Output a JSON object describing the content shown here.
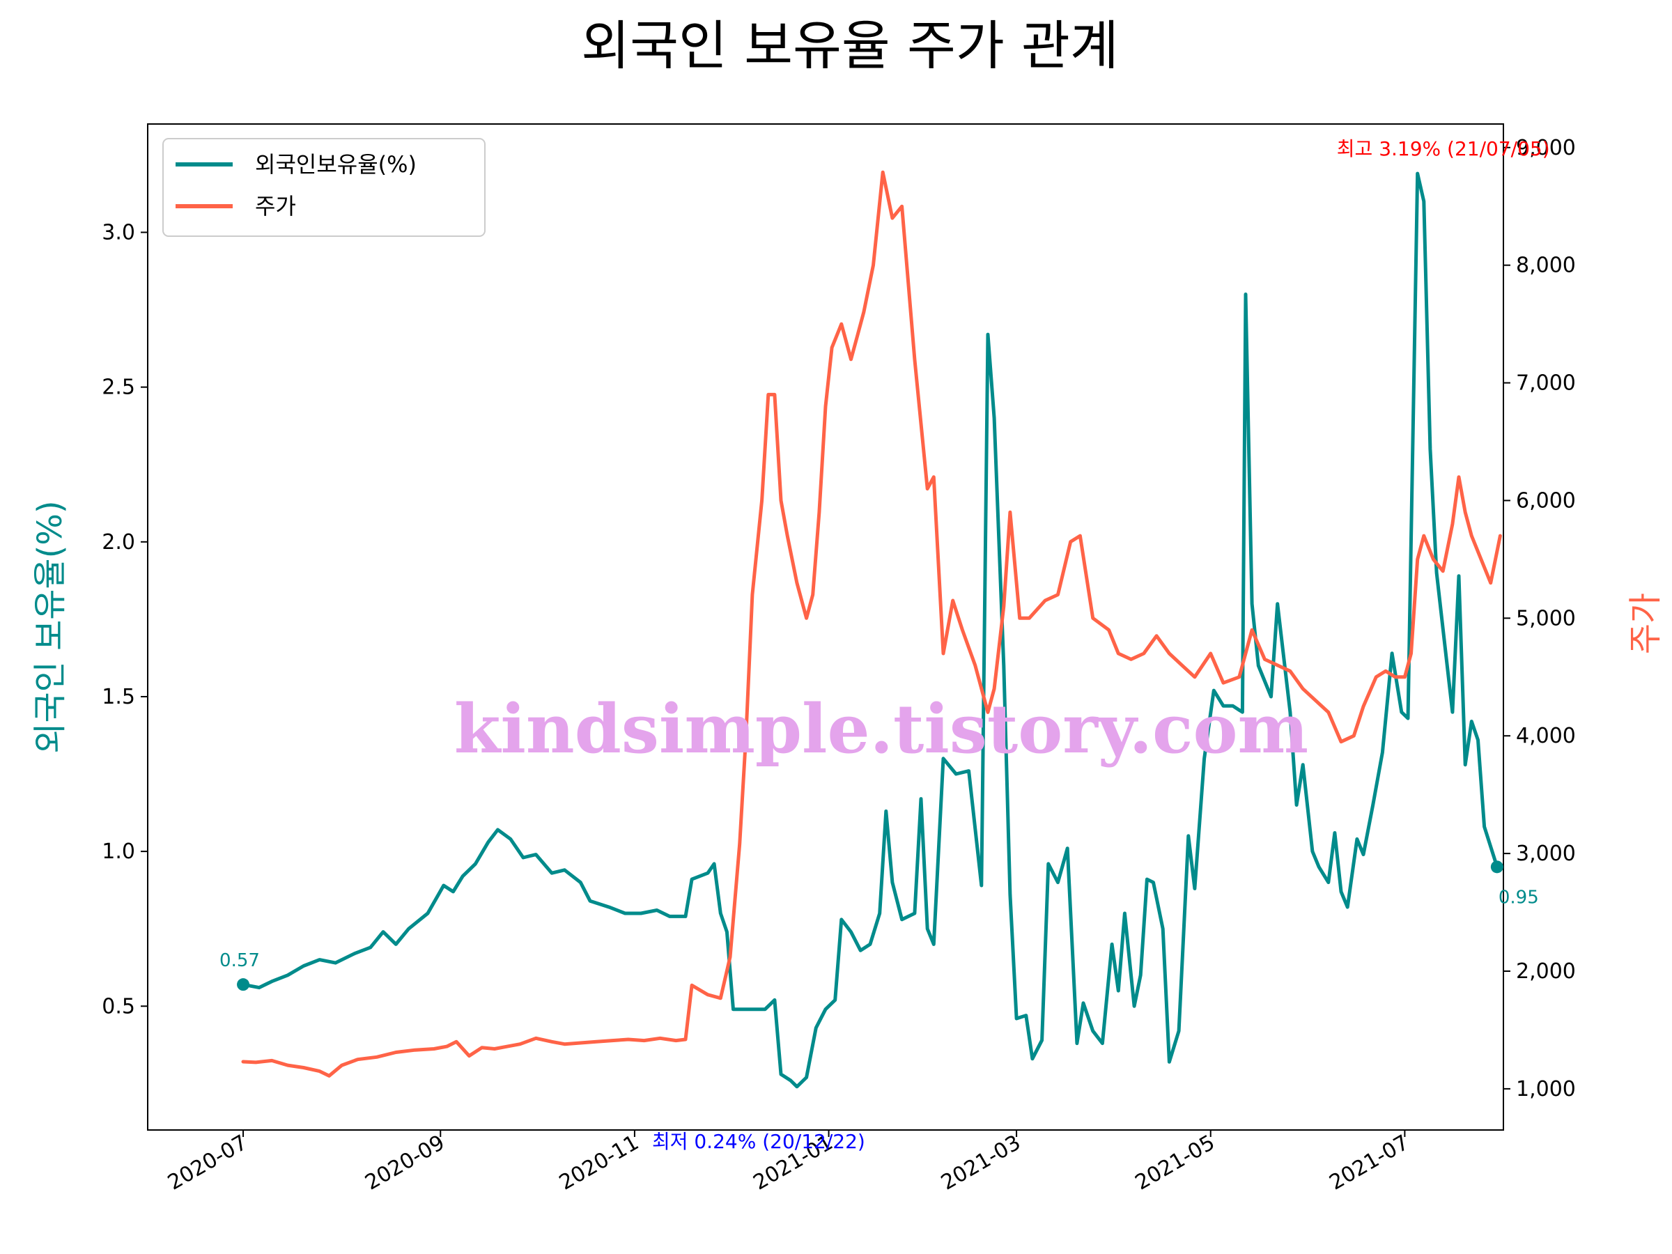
{
  "chart_data": {
    "type": "line",
    "title": "외국인 보유율 주가 관계",
    "ylabel_left": "외국인 보유율(%)",
    "ylabel_right": "주가",
    "colors": {
      "holding": "#008b8b",
      "price": "#ff6347",
      "max_annotation": "#ff0000",
      "min_annotation": "#0000ff",
      "watermark": "#e4a4ec"
    },
    "xlim": [
      "2020-06-01",
      "2021-08-01"
    ],
    "ylim_left": [
      0.1,
      3.35
    ],
    "ylim_right": [
      650,
      9200
    ],
    "x_ticks": [
      "2020-07",
      "2020-09",
      "2020-11",
      "2021-01",
      "2021-03",
      "2021-05",
      "2021-07"
    ],
    "y_left_ticks": [
      "0.5",
      "1.0",
      "1.5",
      "2.0",
      "2.5",
      "3.0"
    ],
    "y_right_ticks": [
      "1,000",
      "2,000",
      "3,000",
      "4,000",
      "5,000",
      "6,000",
      "7,000",
      "8,000",
      "9,000"
    ],
    "legend": {
      "position": "upper-left",
      "entries": [
        "외국인보유율(%)",
        "주가"
      ]
    },
    "grid": false,
    "series": [
      {
        "name": "외국인보유율(%)",
        "axis": "left",
        "points": [
          [
            "2020-07-01",
            0.57
          ],
          [
            "2020-07-06",
            0.56
          ],
          [
            "2020-07-10",
            0.58
          ],
          [
            "2020-07-15",
            0.6
          ],
          [
            "2020-07-20",
            0.63
          ],
          [
            "2020-07-25",
            0.65
          ],
          [
            "2020-07-30",
            0.64
          ],
          [
            "2020-08-05",
            0.67
          ],
          [
            "2020-08-10",
            0.69
          ],
          [
            "2020-08-14",
            0.74
          ],
          [
            "2020-08-18",
            0.7
          ],
          [
            "2020-08-22",
            0.75
          ],
          [
            "2020-08-28",
            0.8
          ],
          [
            "2020-09-02",
            0.89
          ],
          [
            "2020-09-05",
            0.87
          ],
          [
            "2020-09-08",
            0.92
          ],
          [
            "2020-09-12",
            0.96
          ],
          [
            "2020-09-16",
            1.03
          ],
          [
            "2020-09-19",
            1.07
          ],
          [
            "2020-09-23",
            1.04
          ],
          [
            "2020-09-27",
            0.98
          ],
          [
            "2020-10-01",
            0.99
          ],
          [
            "2020-10-06",
            0.93
          ],
          [
            "2020-10-10",
            0.94
          ],
          [
            "2020-10-15",
            0.9
          ],
          [
            "2020-10-18",
            0.84
          ],
          [
            "2020-10-24",
            0.82
          ],
          [
            "2020-10-29",
            0.8
          ],
          [
            "2020-11-03",
            0.8
          ],
          [
            "2020-11-08",
            0.81
          ],
          [
            "2020-11-12",
            0.79
          ],
          [
            "2020-11-17",
            0.79
          ],
          [
            "2020-11-19",
            0.91
          ],
          [
            "2020-11-24",
            0.93
          ],
          [
            "2020-11-26",
            0.96
          ],
          [
            "2020-11-28",
            0.8
          ],
          [
            "2020-11-30",
            0.74
          ],
          [
            "2020-12-02",
            0.49
          ],
          [
            "2020-12-08",
            0.49
          ],
          [
            "2020-12-12",
            0.49
          ],
          [
            "2020-12-15",
            0.52
          ],
          [
            "2020-12-17",
            0.28
          ],
          [
            "2020-12-20",
            0.26
          ],
          [
            "2020-12-22",
            0.24
          ],
          [
            "2020-12-25",
            0.27
          ],
          [
            "2020-12-28",
            0.43
          ],
          [
            "2020-12-31",
            0.49
          ],
          [
            "2021-01-03",
            0.52
          ],
          [
            "2021-01-05",
            0.78
          ],
          [
            "2021-01-08",
            0.74
          ],
          [
            "2021-01-11",
            0.68
          ],
          [
            "2021-01-14",
            0.7
          ],
          [
            "2021-01-17",
            0.8
          ],
          [
            "2021-01-19",
            1.13
          ],
          [
            "2021-01-21",
            0.9
          ],
          [
            "2021-01-24",
            0.78
          ],
          [
            "2021-01-28",
            0.8
          ],
          [
            "2021-01-30",
            1.17
          ],
          [
            "2021-02-01",
            0.75
          ],
          [
            "2021-02-03",
            0.7
          ],
          [
            "2021-02-06",
            1.3
          ],
          [
            "2021-02-10",
            1.25
          ],
          [
            "2021-02-14",
            1.26
          ],
          [
            "2021-02-18",
            0.89
          ],
          [
            "2021-02-20",
            2.67
          ],
          [
            "2021-02-22",
            2.4
          ],
          [
            "2021-02-25",
            1.6
          ],
          [
            "2021-02-27",
            0.86
          ],
          [
            "2021-03-01",
            0.46
          ],
          [
            "2021-03-04",
            0.47
          ],
          [
            "2021-03-06",
            0.33
          ],
          [
            "2021-03-09",
            0.39
          ],
          [
            "2021-03-11",
            0.96
          ],
          [
            "2021-03-14",
            0.9
          ],
          [
            "2021-03-17",
            1.01
          ],
          [
            "2021-03-20",
            0.38
          ],
          [
            "2021-03-22",
            0.51
          ],
          [
            "2021-03-25",
            0.42
          ],
          [
            "2021-03-28",
            0.38
          ],
          [
            "2021-03-31",
            0.7
          ],
          [
            "2021-04-02",
            0.55
          ],
          [
            "2021-04-04",
            0.8
          ],
          [
            "2021-04-07",
            0.5
          ],
          [
            "2021-04-09",
            0.6
          ],
          [
            "2021-04-11",
            0.91
          ],
          [
            "2021-04-13",
            0.9
          ],
          [
            "2021-04-16",
            0.75
          ],
          [
            "2021-04-18",
            0.32
          ],
          [
            "2021-04-21",
            0.42
          ],
          [
            "2021-04-24",
            1.05
          ],
          [
            "2021-04-26",
            0.88
          ],
          [
            "2021-04-29",
            1.3
          ],
          [
            "2021-05-02",
            1.52
          ],
          [
            "2021-05-05",
            1.47
          ],
          [
            "2021-05-08",
            1.47
          ],
          [
            "2021-05-11",
            1.45
          ],
          [
            "2021-05-12",
            2.8
          ],
          [
            "2021-05-14",
            1.8
          ],
          [
            "2021-05-16",
            1.6
          ],
          [
            "2021-05-20",
            1.5
          ],
          [
            "2021-05-22",
            1.8
          ],
          [
            "2021-05-26",
            1.45
          ],
          [
            "2021-05-28",
            1.15
          ],
          [
            "2021-05-30",
            1.28
          ],
          [
            "2021-06-02",
            1.0
          ],
          [
            "2021-06-04",
            0.95
          ],
          [
            "2021-06-07",
            0.9
          ],
          [
            "2021-06-09",
            1.06
          ],
          [
            "2021-06-11",
            0.87
          ],
          [
            "2021-06-13",
            0.82
          ],
          [
            "2021-06-16",
            1.04
          ],
          [
            "2021-06-18",
            0.99
          ],
          [
            "2021-06-21",
            1.15
          ],
          [
            "2021-06-24",
            1.32
          ],
          [
            "2021-06-27",
            1.64
          ],
          [
            "2021-06-30",
            1.45
          ],
          [
            "2021-07-02",
            1.43
          ],
          [
            "2021-07-05",
            3.19
          ],
          [
            "2021-07-07",
            3.1
          ],
          [
            "2021-07-09",
            2.3
          ],
          [
            "2021-07-11",
            1.9
          ],
          [
            "2021-07-13",
            1.72
          ],
          [
            "2021-07-16",
            1.45
          ],
          [
            "2021-07-18",
            1.89
          ],
          [
            "2021-07-20",
            1.28
          ],
          [
            "2021-07-22",
            1.42
          ],
          [
            "2021-07-24",
            1.36
          ],
          [
            "2021-07-26",
            1.08
          ],
          [
            "2021-07-30",
            0.95
          ]
        ]
      },
      {
        "name": "주가",
        "axis": "right",
        "points": [
          [
            "2020-07-01",
            1230
          ],
          [
            "2020-07-05",
            1225
          ],
          [
            "2020-07-10",
            1240
          ],
          [
            "2020-07-15",
            1200
          ],
          [
            "2020-07-20",
            1180
          ],
          [
            "2020-07-25",
            1150
          ],
          [
            "2020-07-28",
            1110
          ],
          [
            "2020-08-01",
            1200
          ],
          [
            "2020-08-06",
            1250
          ],
          [
            "2020-08-12",
            1270
          ],
          [
            "2020-08-18",
            1310
          ],
          [
            "2020-08-24",
            1330
          ],
          [
            "2020-08-30",
            1340
          ],
          [
            "2020-09-03",
            1360
          ],
          [
            "2020-09-06",
            1400
          ],
          [
            "2020-09-10",
            1280
          ],
          [
            "2020-09-14",
            1350
          ],
          [
            "2020-09-18",
            1340
          ],
          [
            "2020-09-22",
            1360
          ],
          [
            "2020-09-26",
            1380
          ],
          [
            "2020-10-01",
            1430
          ],
          [
            "2020-10-06",
            1400
          ],
          [
            "2020-10-10",
            1380
          ],
          [
            "2020-10-15",
            1390
          ],
          [
            "2020-10-20",
            1400
          ],
          [
            "2020-10-25",
            1410
          ],
          [
            "2020-10-30",
            1420
          ],
          [
            "2020-11-04",
            1410
          ],
          [
            "2020-11-09",
            1430
          ],
          [
            "2020-11-14",
            1410
          ],
          [
            "2020-11-17",
            1420
          ],
          [
            "2020-11-19",
            1880
          ],
          [
            "2020-11-24",
            1800
          ],
          [
            "2020-11-28",
            1770
          ],
          [
            "2020-12-01",
            2120
          ],
          [
            "2020-12-04",
            3080
          ],
          [
            "2020-12-06",
            4000
          ],
          [
            "2020-12-08",
            5200
          ],
          [
            "2020-12-11",
            6000
          ],
          [
            "2020-12-13",
            6900
          ],
          [
            "2020-12-15",
            6900
          ],
          [
            "2020-12-17",
            6000
          ],
          [
            "2020-12-19",
            5700
          ],
          [
            "2020-12-22",
            5300
          ],
          [
            "2020-12-25",
            5000
          ],
          [
            "2020-12-27",
            5200
          ],
          [
            "2020-12-29",
            5900
          ],
          [
            "2020-12-31",
            6800
          ],
          [
            "2021-01-02",
            7300
          ],
          [
            "2021-01-05",
            7500
          ],
          [
            "2021-01-08",
            7200
          ],
          [
            "2021-01-10",
            7400
          ],
          [
            "2021-01-12",
            7600
          ],
          [
            "2021-01-15",
            8000
          ],
          [
            "2021-01-18",
            8790
          ],
          [
            "2021-01-21",
            8400
          ],
          [
            "2021-01-24",
            8500
          ],
          [
            "2021-01-28",
            7200
          ],
          [
            "2021-02-01",
            6100
          ],
          [
            "2021-02-03",
            6200
          ],
          [
            "2021-02-06",
            4700
          ],
          [
            "2021-02-09",
            5150
          ],
          [
            "2021-02-12",
            4900
          ],
          [
            "2021-02-16",
            4600
          ],
          [
            "2021-02-20",
            4200
          ],
          [
            "2021-02-22",
            4400
          ],
          [
            "2021-02-25",
            5100
          ],
          [
            "2021-02-27",
            5900
          ],
          [
            "2021-03-02",
            5000
          ],
          [
            "2021-03-05",
            5000
          ],
          [
            "2021-03-10",
            5150
          ],
          [
            "2021-03-14",
            5200
          ],
          [
            "2021-03-18",
            5650
          ],
          [
            "2021-03-21",
            5700
          ],
          [
            "2021-03-25",
            5000
          ],
          [
            "2021-03-30",
            4900
          ],
          [
            "2021-04-02",
            4700
          ],
          [
            "2021-04-06",
            4650
          ],
          [
            "2021-04-10",
            4700
          ],
          [
            "2021-04-14",
            4850
          ],
          [
            "2021-04-18",
            4700
          ],
          [
            "2021-04-22",
            4600
          ],
          [
            "2021-04-26",
            4500
          ],
          [
            "2021-05-01",
            4700
          ],
          [
            "2021-05-05",
            4450
          ],
          [
            "2021-05-10",
            4500
          ],
          [
            "2021-05-14",
            4900
          ],
          [
            "2021-05-18",
            4650
          ],
          [
            "2021-05-22",
            4600
          ],
          [
            "2021-05-26",
            4550
          ],
          [
            "2021-05-30",
            4400
          ],
          [
            "2021-06-03",
            4300
          ],
          [
            "2021-06-07",
            4200
          ],
          [
            "2021-06-11",
            3950
          ],
          [
            "2021-06-15",
            4000
          ],
          [
            "2021-06-18",
            4250
          ],
          [
            "2021-06-22",
            4500
          ],
          [
            "2021-06-25",
            4550
          ],
          [
            "2021-06-28",
            4500
          ],
          [
            "2021-07-01",
            4500
          ],
          [
            "2021-07-03",
            4700
          ],
          [
            "2021-07-05",
            5500
          ],
          [
            "2021-07-07",
            5700
          ],
          [
            "2021-07-10",
            5500
          ],
          [
            "2021-07-13",
            5400
          ],
          [
            "2021-07-16",
            5800
          ],
          [
            "2021-07-18",
            6200
          ],
          [
            "2021-07-20",
            5900
          ],
          [
            "2021-07-22",
            5700
          ],
          [
            "2021-07-25",
            5500
          ],
          [
            "2021-07-28",
            5300
          ],
          [
            "2021-07-31",
            5700
          ]
        ]
      }
    ],
    "annotations": {
      "max": {
        "text": "최고 3.19% (21/07/05)",
        "date": "2021-07-05",
        "value": 3.19
      },
      "min": {
        "text": "최저 0.24% (20/12/22)",
        "date": "2020-12-22",
        "value": 0.24
      },
      "start": {
        "text": "0.57",
        "date": "2020-07-01",
        "value": 0.57
      },
      "end": {
        "text": "0.95",
        "date": "2021-07-30",
        "value": 0.95
      }
    }
  },
  "watermark": "kindsimple.tistory.com"
}
